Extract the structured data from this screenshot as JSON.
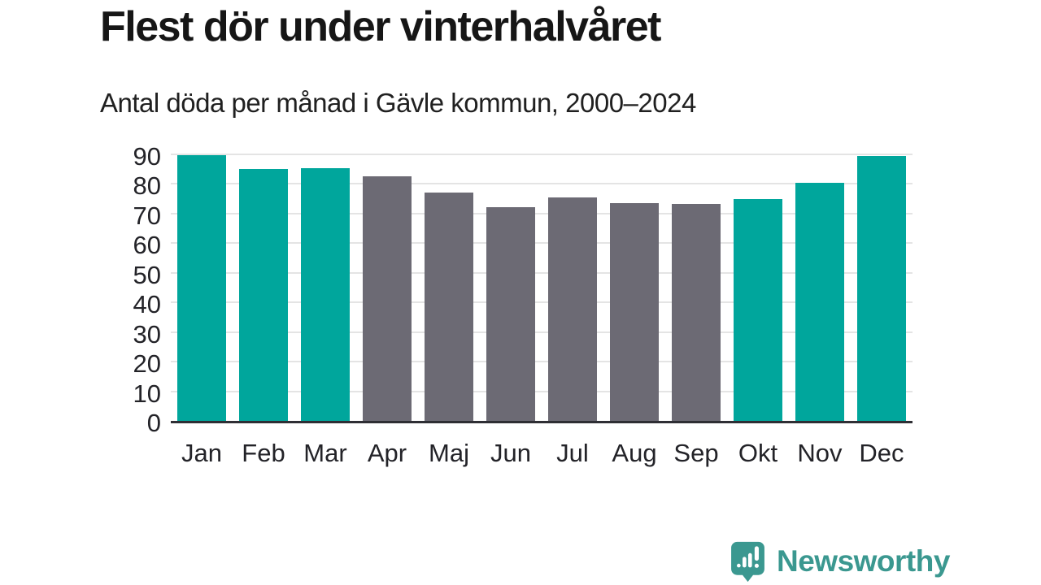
{
  "header": {
    "title": "Flest dör under vinterhalvåret",
    "subtitle": "Antal döda per månad i Gävle kommun, 2000–2024"
  },
  "chart_data": {
    "type": "bar",
    "title": "Flest dör under vinterhalvåret",
    "subtitle": "Antal döda per månad i Gävle kommun, 2000–2024",
    "categories": [
      "Jan",
      "Feb",
      "Mar",
      "Apr",
      "Maj",
      "Jun",
      "Jul",
      "Aug",
      "Sep",
      "Okt",
      "Nov",
      "Dec"
    ],
    "values": [
      89.7,
      85.0,
      85.3,
      82.5,
      77.2,
      72.3,
      75.4,
      73.5,
      73.3,
      75.0,
      80.3,
      89.5
    ],
    "bar_color_keys": [
      "winter",
      "winter",
      "winter",
      "summer",
      "summer",
      "summer",
      "summer",
      "summer",
      "summer",
      "winter",
      "winter",
      "winter"
    ],
    "palette": {
      "winter": "#00a69c",
      "summer": "#6c6a74"
    },
    "xlabel": "",
    "ylabel": "",
    "ylim": [
      0,
      90
    ],
    "yticks": [
      0,
      10,
      20,
      30,
      40,
      50,
      60,
      70,
      80,
      90
    ],
    "grid": "horizontal",
    "legend": "none",
    "gridline_color": "#e4e4e4",
    "baseline_color": "#2e2e34"
  },
  "footer": {
    "brand": "Newsworthy",
    "brand_color": "#3b9890",
    "logo_icon": "bar-chart-speech-bubble"
  }
}
